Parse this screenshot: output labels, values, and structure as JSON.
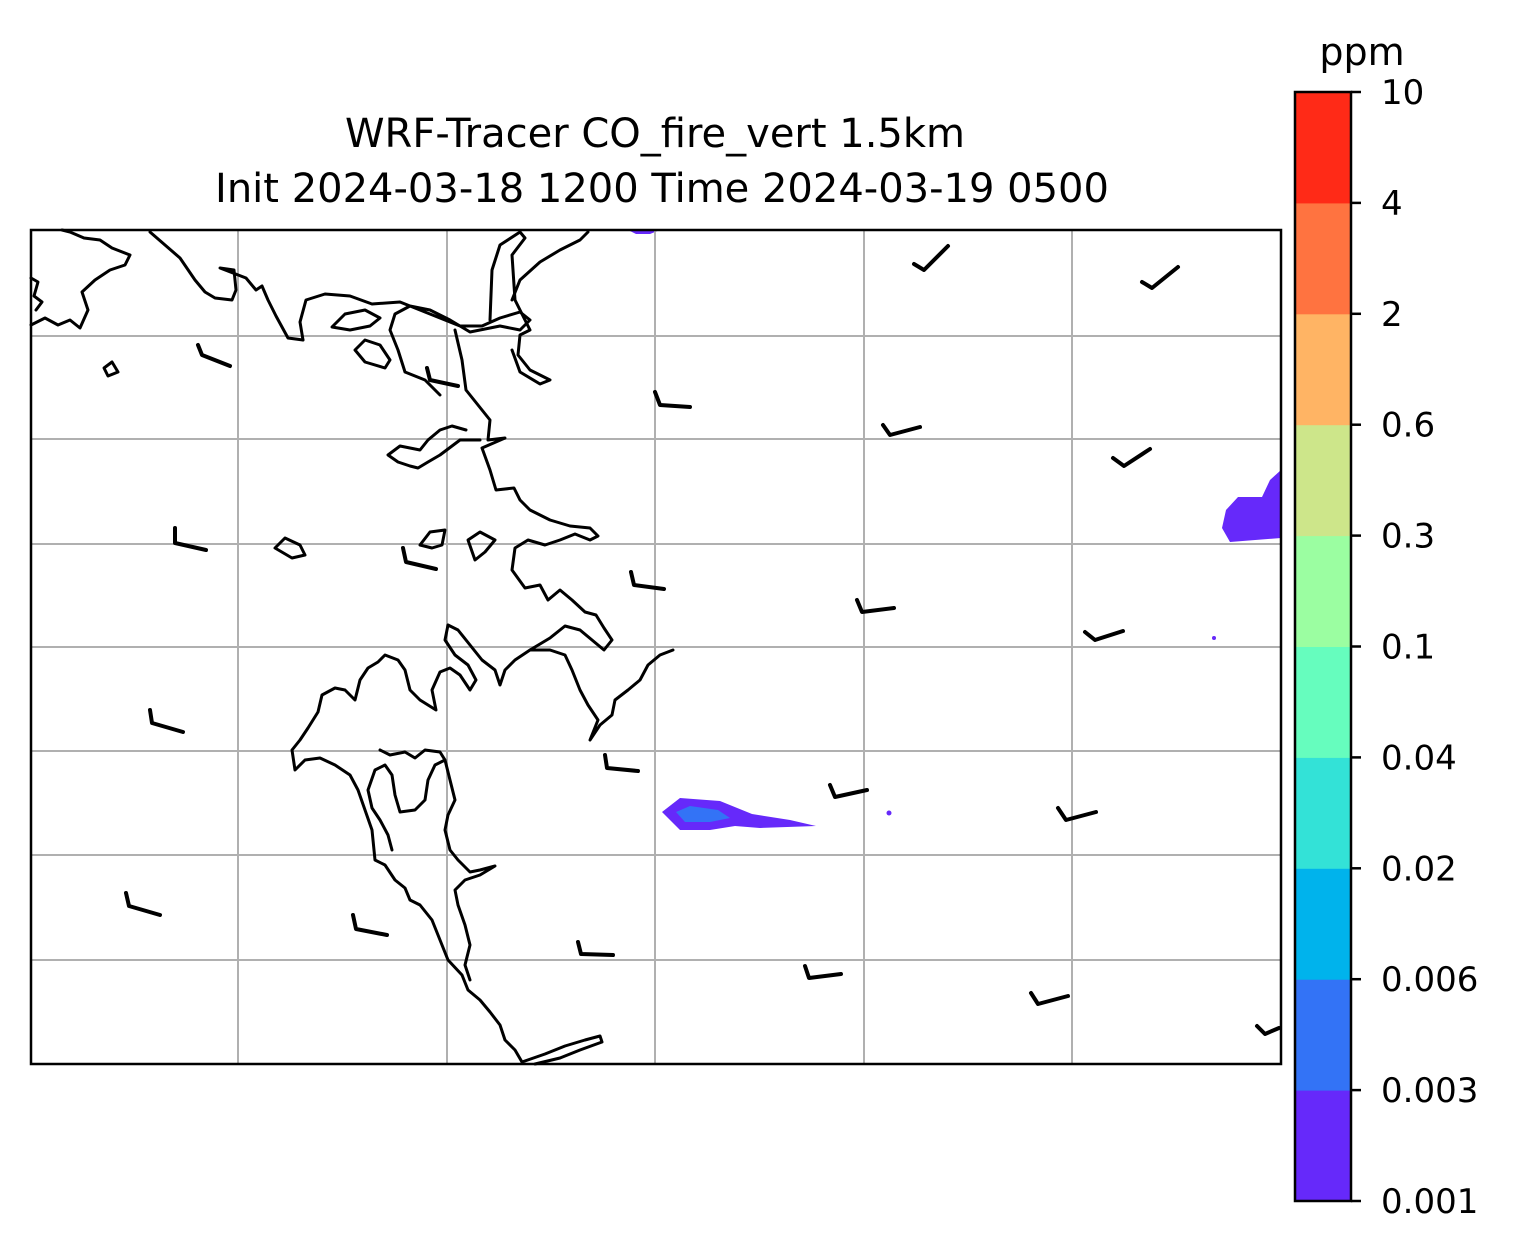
{
  "title": {
    "line1": "WRF-Tracer CO_fire_vert 1.5km",
    "line2": "Init 2024-03-18 1200 Time 2024-03-19 0500"
  },
  "colorbar": {
    "unit": "ppm",
    "levels": [
      "0.001",
      "0.003",
      "0.006",
      "0.02",
      "0.04",
      "0.1",
      "0.3",
      "0.6",
      "2",
      "4",
      "10"
    ],
    "colors": [
      "#6629fa",
      "#3373f6",
      "#00b3ec",
      "#33e2d7",
      "#66fdbe",
      "#9bfea1",
      "#cde68a",
      "#ffb464",
      "#ff7340",
      "#ff2a17"
    ]
  },
  "map": {
    "gridlines": true,
    "coastline_color": "#000000",
    "tracer_color_low": "#6629fa",
    "tracer_color_mid": "#3373f6"
  }
}
